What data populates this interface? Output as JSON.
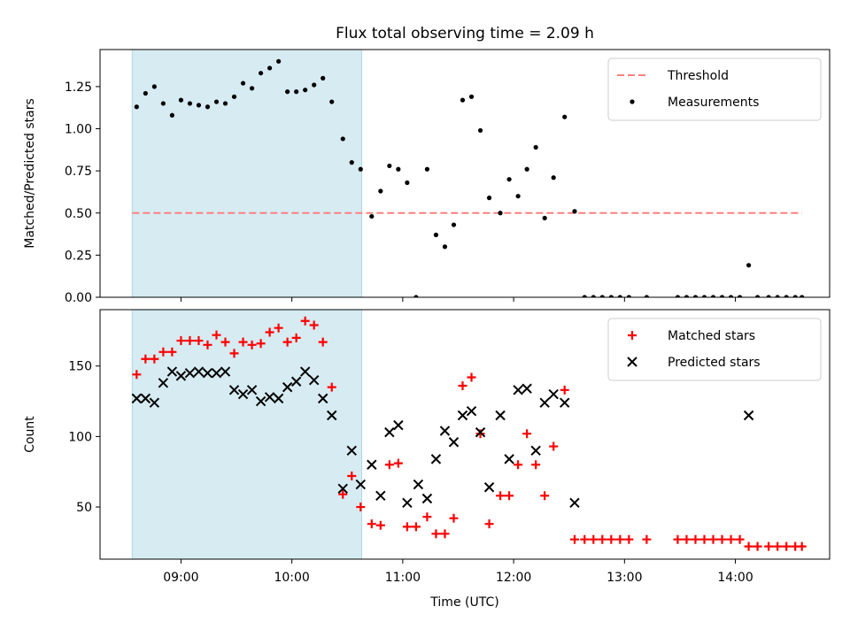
{
  "title": "Flux total observing time = 2.09 h",
  "colors": {
    "span": "#add8e6",
    "threshold": "#ff7f7f",
    "measurement": "#000000",
    "matched": "#ff0000",
    "predicted": "#000000"
  },
  "chart_data": [
    {
      "type": "scatter",
      "ylabel": "Matched/Predicted stars",
      "xlim": [
        8.27,
        14.85
      ],
      "ylim": [
        0,
        1.47
      ],
      "yticks": [
        0.0,
        0.25,
        0.5,
        0.75,
        1.0,
        1.25
      ],
      "ytick_labels": [
        "0.00",
        "0.25",
        "0.50",
        "0.75",
        "1.00",
        "1.25"
      ],
      "legend_position": "top-right",
      "shaded_span": [
        8.56,
        10.63
      ],
      "threshold": {
        "name": "Threshold",
        "y": 0.5,
        "x_range": [
          8.56,
          14.6
        ]
      },
      "series": [
        {
          "name": "Measurements",
          "x": [
            8.6,
            8.68,
            8.76,
            8.84,
            8.92,
            9.0,
            9.08,
            9.16,
            9.24,
            9.32,
            9.4,
            9.48,
            9.56,
            9.64,
            9.72,
            9.8,
            9.88,
            9.96,
            10.04,
            10.12,
            10.2,
            10.28,
            10.36,
            10.46,
            10.54,
            10.62,
            10.72,
            10.8,
            10.88,
            10.96,
            11.04,
            11.12,
            11.22,
            11.3,
            11.38,
            11.46,
            11.54,
            11.62,
            11.7,
            11.78,
            11.88,
            11.96,
            12.04,
            12.12,
            12.2,
            12.28,
            12.36,
            12.46,
            12.55,
            12.64,
            12.72,
            12.8,
            12.88,
            12.96,
            13.04,
            13.2,
            13.48,
            13.56,
            13.64,
            13.72,
            13.8,
            13.88,
            13.96,
            14.04,
            14.12,
            14.2,
            14.3,
            14.38,
            14.46,
            14.54,
            14.6
          ],
          "y": [
            1.13,
            1.21,
            1.25,
            1.15,
            1.08,
            1.17,
            1.15,
            1.14,
            1.13,
            1.16,
            1.15,
            1.19,
            1.27,
            1.24,
            1.33,
            1.36,
            1.4,
            1.22,
            1.22,
            1.23,
            1.26,
            1.3,
            1.16,
            0.94,
            0.8,
            0.76,
            0.48,
            0.63,
            0.78,
            0.76,
            0.68,
            0.0,
            0.76,
            0.37,
            0.3,
            0.43,
            1.17,
            1.19,
            0.99,
            0.59,
            0.5,
            0.7,
            0.6,
            0.76,
            0.89,
            0.47,
            0.71,
            1.07,
            0.51,
            0.0,
            0.0,
            0.0,
            0.0,
            0.0,
            0.0,
            0.0,
            0.0,
            0.0,
            0.0,
            0.0,
            0.0,
            0.0,
            0.0,
            0.0,
            0.19,
            0.0,
            0.0,
            0.0,
            0.0,
            0.0,
            0.0
          ]
        }
      ]
    },
    {
      "type": "scatter",
      "xlabel": "Time (UTC)",
      "ylabel": "Count",
      "xlim": [
        8.27,
        14.85
      ],
      "ylim": [
        13,
        190
      ],
      "xticks": [
        9,
        10,
        11,
        12,
        13,
        14
      ],
      "xtick_labels": [
        "09:00",
        "10:00",
        "11:00",
        "12:00",
        "13:00",
        "14:00"
      ],
      "yticks": [
        50,
        100,
        150
      ],
      "ytick_labels": [
        "50",
        "100",
        "150"
      ],
      "legend_position": "top-right",
      "shaded_span": [
        8.56,
        10.63
      ],
      "series": [
        {
          "name": "Matched stars",
          "marker": "plus",
          "x": [
            8.6,
            8.68,
            8.76,
            8.84,
            8.92,
            9.0,
            9.08,
            9.16,
            9.24,
            9.32,
            9.4,
            9.48,
            9.56,
            9.64,
            9.72,
            9.8,
            9.88,
            9.96,
            10.04,
            10.12,
            10.2,
            10.28,
            10.36,
            10.46,
            10.54,
            10.62,
            10.72,
            10.8,
            10.88,
            10.96,
            11.04,
            11.12,
            11.22,
            11.3,
            11.38,
            11.46,
            11.54,
            11.62,
            11.7,
            11.78,
            11.88,
            11.96,
            12.04,
            12.12,
            12.2,
            12.28,
            12.36,
            12.46,
            12.55,
            12.64,
            12.72,
            12.8,
            12.88,
            12.96,
            13.04,
            13.2,
            13.48,
            13.56,
            13.64,
            13.72,
            13.8,
            13.88,
            13.96,
            14.04,
            14.12,
            14.2,
            14.3,
            14.38,
            14.46,
            14.54,
            14.6
          ],
          "y": [
            144,
            155,
            155,
            160,
            160,
            168,
            168,
            168,
            165,
            172,
            167,
            159,
            167,
            165,
            166,
            174,
            177,
            167,
            170,
            182,
            179,
            167,
            135,
            59,
            72,
            50,
            38,
            37,
            80,
            81,
            36,
            36,
            43,
            31,
            31,
            42,
            136,
            142,
            102,
            38,
            58,
            58,
            80,
            102,
            80,
            58,
            93,
            133,
            27,
            27,
            27,
            27,
            27,
            27,
            27,
            27,
            27,
            27,
            27,
            27,
            27,
            27,
            27,
            27,
            22,
            22,
            22,
            22,
            22,
            22,
            22
          ]
        },
        {
          "name": "Predicted stars",
          "marker": "x",
          "x": [
            8.6,
            8.68,
            8.76,
            8.84,
            8.92,
            9.0,
            9.08,
            9.16,
            9.24,
            9.32,
            9.4,
            9.48,
            9.56,
            9.64,
            9.72,
            9.8,
            9.88,
            9.96,
            10.04,
            10.12,
            10.2,
            10.28,
            10.36,
            10.46,
            10.54,
            10.62,
            10.72,
            10.8,
            10.88,
            10.96,
            11.04,
            11.14,
            11.22,
            11.3,
            11.38,
            11.46,
            11.54,
            11.62,
            11.7,
            11.78,
            11.88,
            11.96,
            12.04,
            12.12,
            12.2,
            12.28,
            12.36,
            12.46,
            12.55,
            14.12
          ],
          "y": [
            127,
            127,
            124,
            138,
            146,
            143,
            145,
            146,
            145,
            145,
            146,
            133,
            130,
            133,
            125,
            128,
            127,
            135,
            139,
            146,
            140,
            127,
            115,
            63,
            90,
            66,
            80,
            58,
            103,
            108,
            53,
            66,
            56,
            84,
            104,
            96,
            115,
            118,
            103,
            64,
            115,
            84,
            133,
            134,
            90,
            124,
            130,
            124,
            53,
            115
          ]
        }
      ]
    }
  ]
}
